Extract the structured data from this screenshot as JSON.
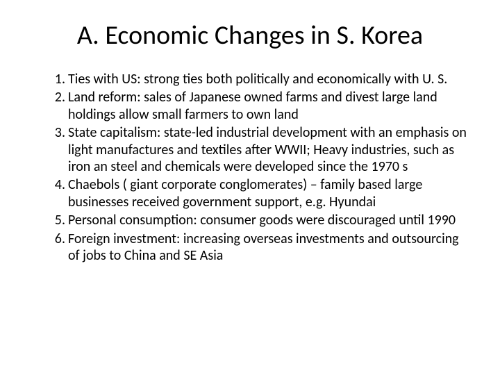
{
  "slide": {
    "title": "A. Economic Changes in S. Korea",
    "items": [
      "Ties with US: strong ties both politically and economically with U. S.",
      "Land reform: sales of Japanese owned farms and divest large land holdings allow  small farmers to own land",
      "State capitalism: state-led industrial development with an emphasis on light manufactures and textiles after WWII; Heavy industries, such as iron an steel and chemicals were developed since the 1970 s",
      "Chaebols ( giant corporate conglomerates) – family based large businesses received government support, e.g. Hyundai",
      "Personal consumption: consumer goods were discouraged until 1990",
      "Foreign investment: increasing overseas investments and outsourcing of jobs to China and SE Asia"
    ]
  },
  "style": {
    "background_color": "#ffffff",
    "text_color": "#000000",
    "title_fontsize": 38,
    "body_fontsize": 20,
    "font_family": "Calibri"
  }
}
